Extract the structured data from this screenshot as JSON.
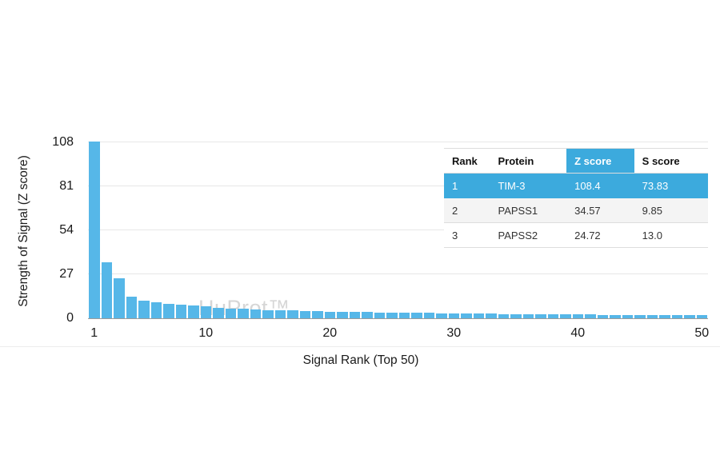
{
  "watermark": "HuProt™",
  "chart_data": {
    "type": "bar",
    "title": "",
    "xlabel": "Signal Rank (Top 50)",
    "ylabel": "Strength of Signal (Z score)",
    "ylim": [
      0,
      108
    ],
    "yticks": [
      0,
      27,
      54,
      81,
      108
    ],
    "xticks": [
      1,
      10,
      20,
      30,
      40,
      50
    ],
    "grid": "horizontal",
    "bar_color": "#56b7e8",
    "x": [
      1,
      2,
      3,
      4,
      5,
      6,
      7,
      8,
      9,
      10,
      11,
      12,
      13,
      14,
      15,
      16,
      17,
      18,
      19,
      20,
      21,
      22,
      23,
      24,
      25,
      26,
      27,
      28,
      29,
      30,
      31,
      32,
      33,
      34,
      35,
      36,
      37,
      38,
      39,
      40,
      41,
      42,
      43,
      44,
      45,
      46,
      47,
      48,
      49,
      50
    ],
    "values": [
      108.4,
      34.57,
      24.72,
      13.2,
      10.8,
      9.6,
      8.9,
      8.4,
      7.9,
      7.3,
      6.6,
      6.1,
      5.7,
      5.4,
      5.1,
      4.9,
      4.7,
      4.5,
      4.3,
      4.1,
      3.9,
      3.8,
      3.7,
      3.6,
      3.5,
      3.4,
      3.3,
      3.2,
      3.1,
      3.0,
      2.9,
      2.8,
      2.75,
      2.7,
      2.6,
      2.55,
      2.5,
      2.45,
      2.4,
      2.3,
      2.25,
      2.2,
      2.15,
      2.1,
      2.05,
      2.0,
      1.95,
      1.9,
      1.85,
      1.8
    ]
  },
  "table": {
    "highlight_color": "#3caadd",
    "headers": [
      "Rank",
      "Protein",
      "Z score",
      "S score"
    ],
    "rows": [
      {
        "rank": "1",
        "protein": "TIM-3",
        "z": "108.4",
        "s": "73.83",
        "highlight": true
      },
      {
        "rank": "2",
        "protein": "PAPSS1",
        "z": "34.57",
        "s": "9.85",
        "highlight": false
      },
      {
        "rank": "3",
        "protein": "PAPSS2",
        "z": "24.72",
        "s": "13.0",
        "highlight": false
      }
    ]
  }
}
